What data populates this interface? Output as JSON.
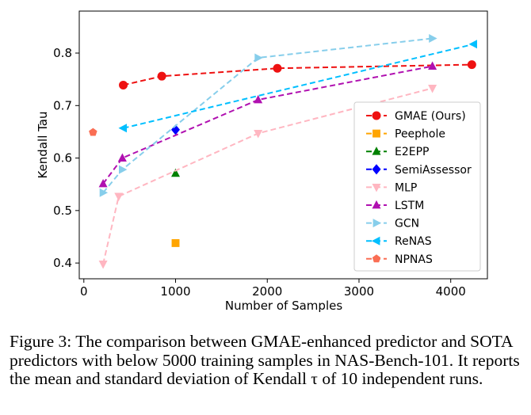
{
  "caption": {
    "text": "Figure 3: The comparison between GMAE-enhanced predictor and SOTA predictors with below 5000 training samples in NAS-Bench-101. It reports the mean and standard deviation of Kendall τ of 10 independent runs."
  },
  "chart_data": {
    "type": "line",
    "xlabel": "Number of Samples",
    "ylabel": "Kendall Tau",
    "xlim": [
      -50,
      4400
    ],
    "ylim": [
      0.37,
      0.88
    ],
    "xticks": [
      0,
      1000,
      2000,
      3000,
      4000
    ],
    "yticks": [
      0.4,
      0.5,
      0.6,
      0.7,
      0.8
    ],
    "grid": false,
    "legend_position": "lower-right",
    "series": [
      {
        "name": "GMAE (Ours)",
        "color": "#ee1111",
        "marker": "circle",
        "x": [
          430,
          850,
          2110,
          4230
        ],
        "y": [
          0.739,
          0.756,
          0.771,
          0.778
        ]
      },
      {
        "name": "Peephole",
        "color": "#ffa500",
        "marker": "square",
        "x": [
          1000
        ],
        "y": [
          0.438
        ]
      },
      {
        "name": "E2EPP",
        "color": "#008000",
        "marker": "triangle-up",
        "x": [
          1000
        ],
        "y": [
          0.571
        ]
      },
      {
        "name": "SemiAssessor",
        "color": "#0000ff",
        "marker": "diamond",
        "x": [
          1000
        ],
        "y": [
          0.654
        ]
      },
      {
        "name": "MLP",
        "color": "#ffb6c1",
        "marker": "triangle-down",
        "x": [
          210,
          380,
          1900,
          3800
        ],
        "y": [
          0.398,
          0.527,
          0.647,
          0.733
        ]
      },
      {
        "name": "LSTM",
        "color": "#b010b0",
        "marker": "triangle-up",
        "x": [
          210,
          420,
          1900,
          3800
        ],
        "y": [
          0.551,
          0.6,
          0.711,
          0.775
        ]
      },
      {
        "name": "GCN",
        "color": "#87ceeb",
        "marker": "triangle-right",
        "x": [
          210,
          420,
          1900,
          3800
        ],
        "y": [
          0.534,
          0.578,
          0.791,
          0.828
        ]
      },
      {
        "name": "ReNAS",
        "color": "#00bfff",
        "marker": "triangle-left",
        "x": [
          430,
          4250
        ],
        "y": [
          0.657,
          0.817
        ]
      },
      {
        "name": "NPNAS",
        "color": "#fa6e54",
        "marker": "pentagon",
        "x": [
          100
        ],
        "y": [
          0.649
        ]
      }
    ]
  }
}
